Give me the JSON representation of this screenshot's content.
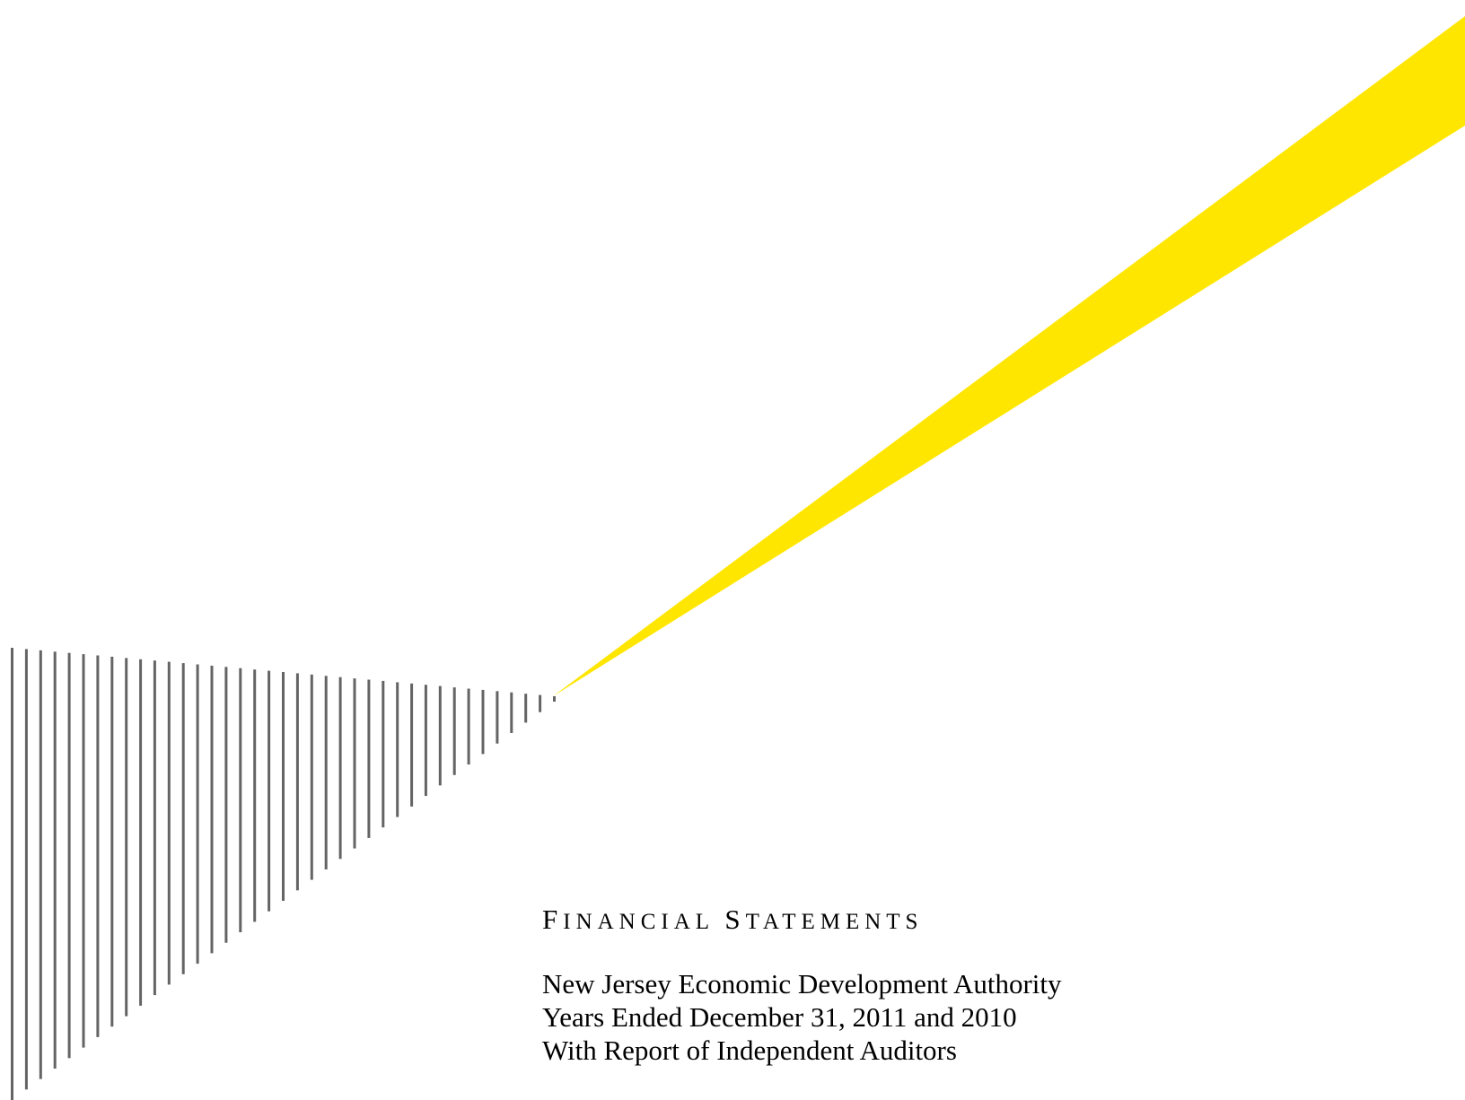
{
  "cover": {
    "doc_type": {
      "words": [
        {
          "cap": "F",
          "rest": "INANCIAL"
        },
        {
          "cap": "S",
          "rest": "TATEMENTS"
        }
      ]
    },
    "lines": [
      "New Jersey Economic Development Authority",
      "Years Ended December 31, 2011 and 2010",
      "With Report of Independent Auditors"
    ]
  },
  "colors": {
    "beam": "#FFE600",
    "stripes": "#646464",
    "text": "#000000",
    "background": "#FFFFFF"
  }
}
